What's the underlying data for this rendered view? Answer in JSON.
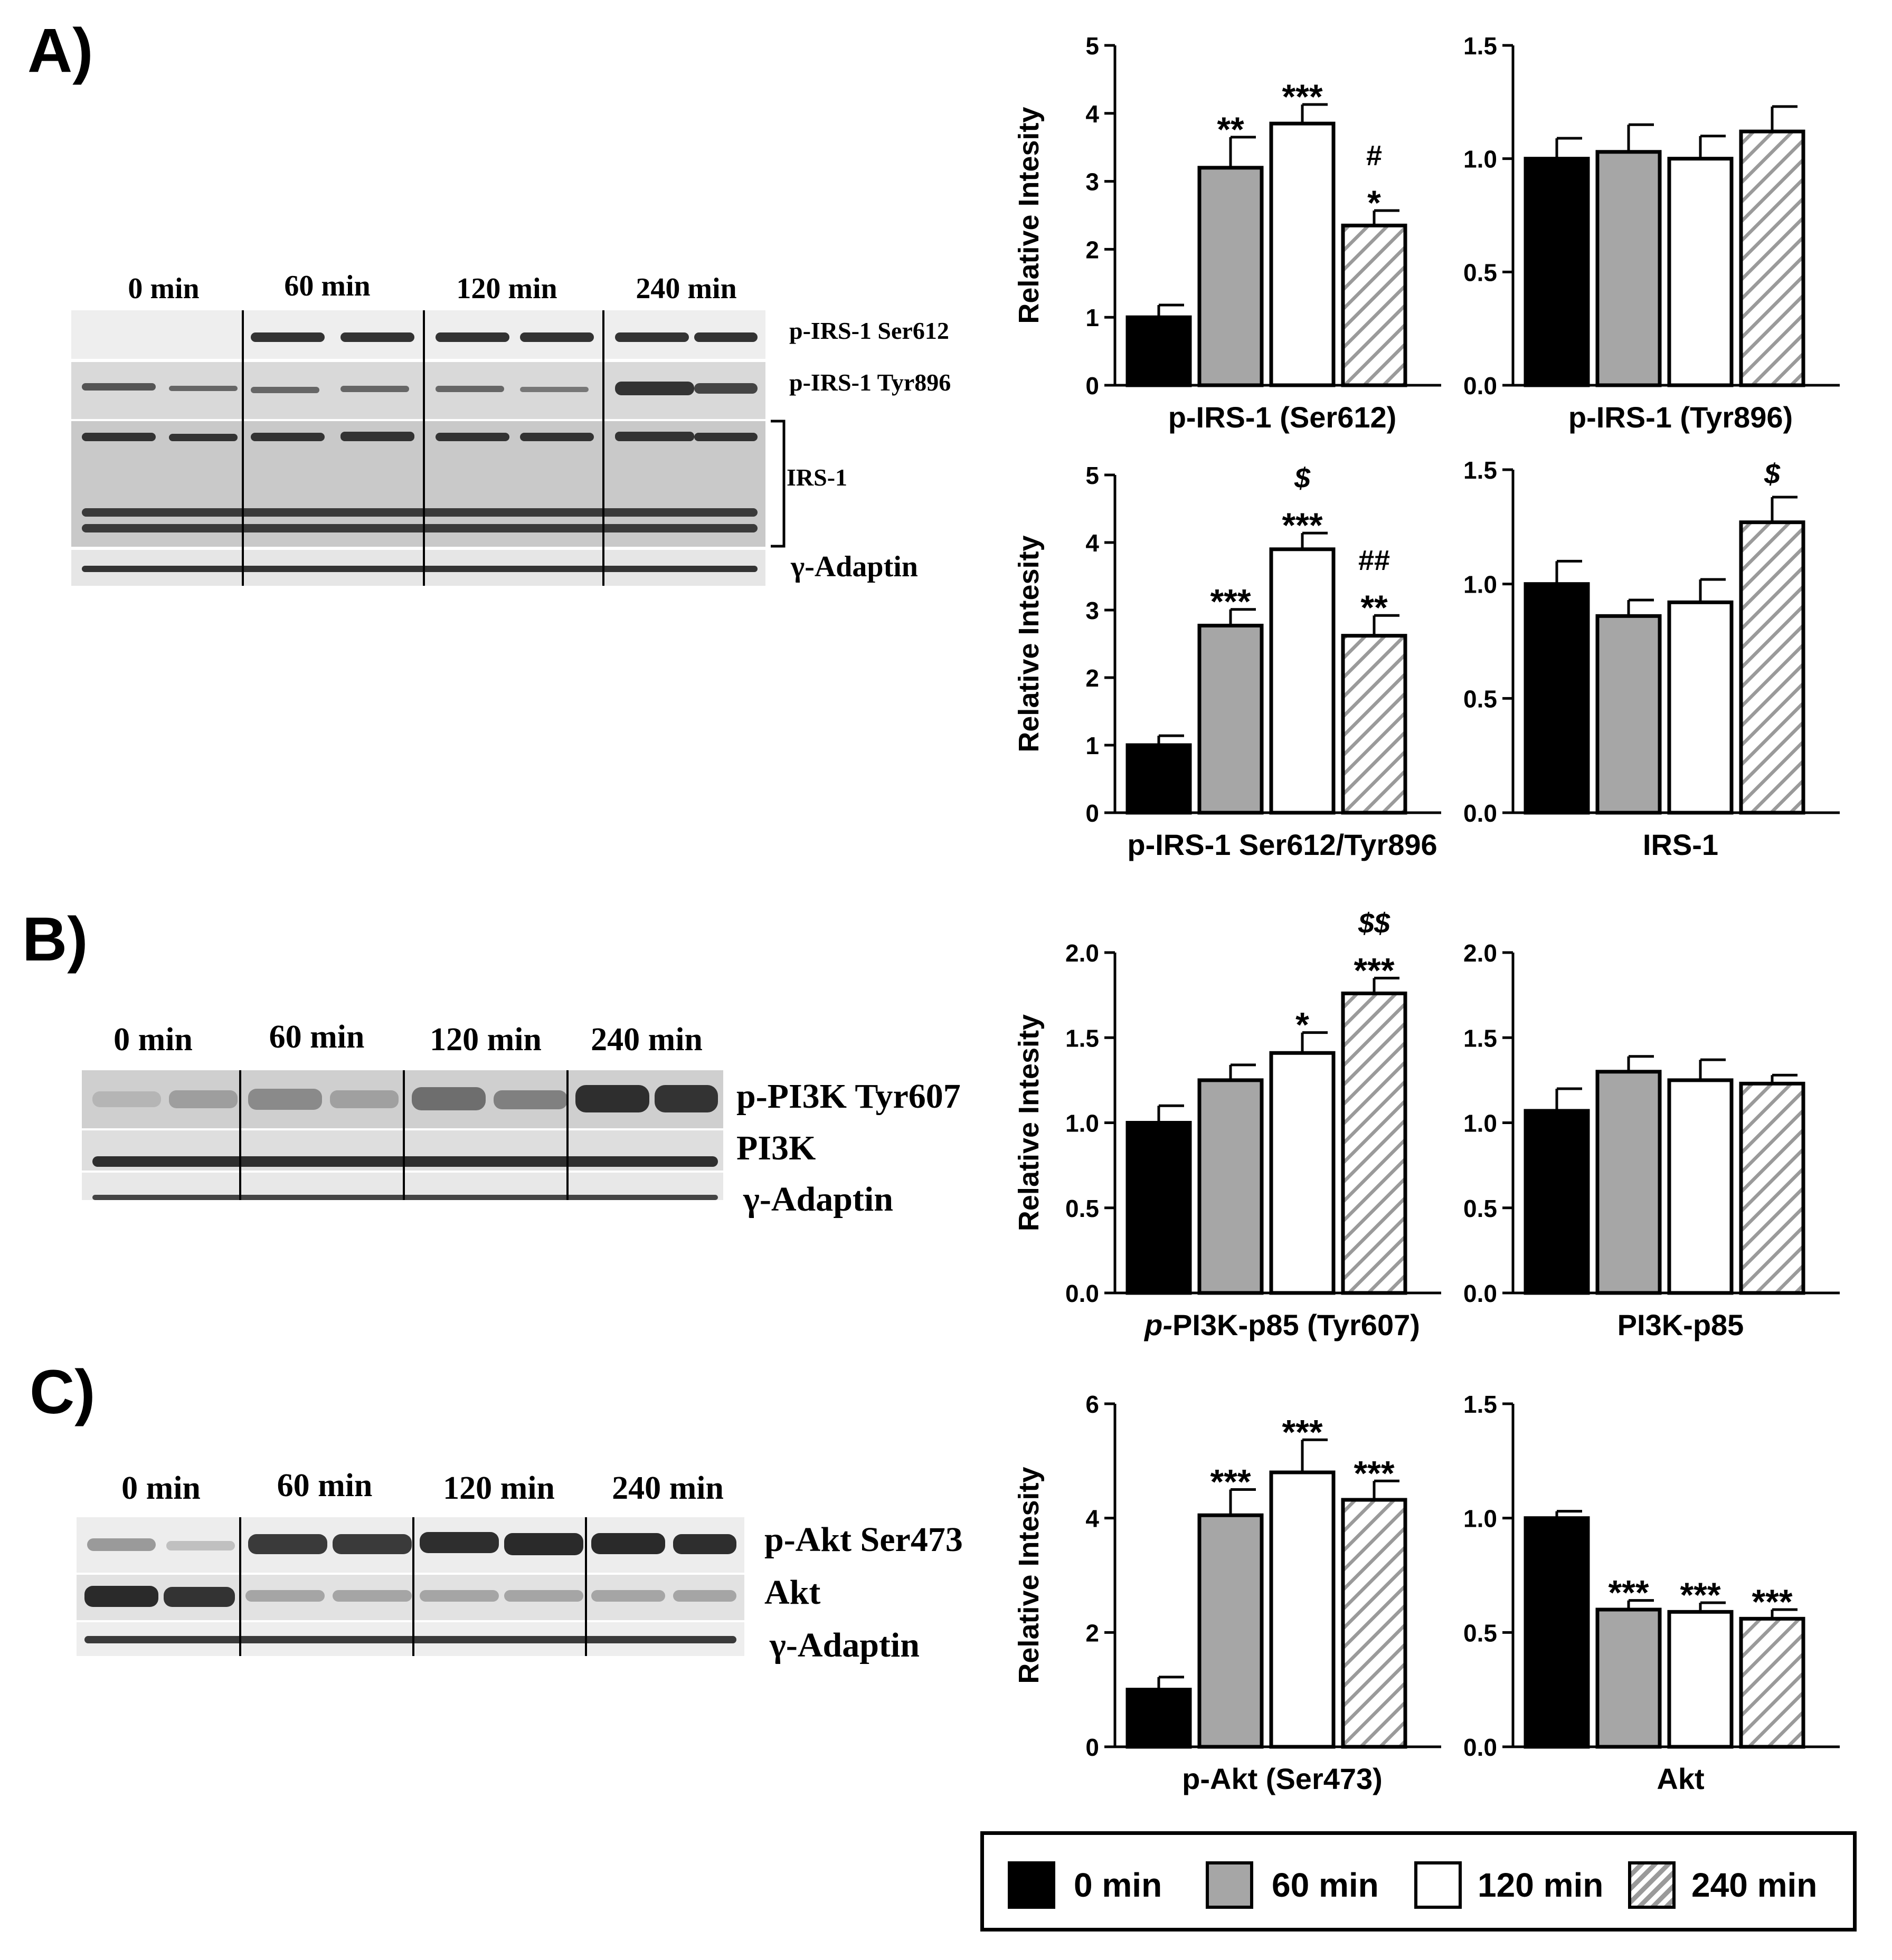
{
  "panels": {
    "A": {
      "label": "A)",
      "timepoints": [
        "0 min",
        "60 min",
        "120 min",
        "240 min"
      ],
      "bands": [
        "p-IRS-1 Ser612",
        "p-IRS-1 Tyr896",
        "IRS-1",
        "γ-Adaptin"
      ]
    },
    "B": {
      "label": "B)",
      "timepoints": [
        "0 min",
        "60 min",
        "120 min",
        "240 min"
      ],
      "bands": [
        "p-PI3K Tyr607",
        "PI3K",
        "γ-Adaptin"
      ]
    },
    "C": {
      "label": "C)",
      "timepoints": [
        "0 min",
        "60 min",
        "120 min",
        "240 min"
      ],
      "bands": [
        "p-Akt Ser473",
        "Akt",
        "γ-Adaptin"
      ]
    }
  },
  "colors": {
    "t0": "#000000",
    "t60": "#a6a6a6",
    "t120": "#ffffff",
    "t240_hatch_bg": "#ffffff",
    "t240_hatch_line": "#9a9a9a"
  },
  "legend": {
    "items": [
      {
        "label": "0 min",
        "style": "black"
      },
      {
        "label": "60 min",
        "style": "gray"
      },
      {
        "label": "120 min",
        "style": "white"
      },
      {
        "label": "240 min",
        "style": "hatched"
      }
    ]
  },
  "chart_data": [
    {
      "type": "bar",
      "xlabel": "p-IRS-1 (Ser612)",
      "xlabel_italic_prefix": "",
      "ylabel": "Relative Intesity",
      "ylim": [
        0,
        5
      ],
      "ticks": [
        "0",
        "1",
        "2",
        "3",
        "4",
        "5"
      ],
      "categories": [
        "0 min",
        "60 min",
        "120 min",
        "240 min"
      ],
      "values": [
        1.0,
        3.2,
        3.85,
        2.35
      ],
      "errors": [
        0.18,
        0.45,
        0.28,
        0.22
      ],
      "annotations": [
        [],
        [
          "**"
        ],
        [
          "***"
        ],
        [
          "#",
          "*"
        ]
      ]
    },
    {
      "type": "bar",
      "xlabel": "p-IRS-1 (Tyr896)",
      "xlabel_italic_prefix": "",
      "ylabel": "",
      "ylim": [
        0,
        1.5
      ],
      "ticks": [
        "0.0",
        "0.5",
        "1.0",
        "1.5"
      ],
      "categories": [
        "0 min",
        "60 min",
        "120 min",
        "240 min"
      ],
      "values": [
        1.0,
        1.03,
        1.0,
        1.12
      ],
      "errors": [
        0.09,
        0.12,
        0.1,
        0.11
      ],
      "annotations": [
        [],
        [],
        [],
        []
      ]
    },
    {
      "type": "bar",
      "xlabel": "p-IRS-1 Ser612/Tyr896",
      "xlabel_italic_prefix": "",
      "ylabel": "Relative Intesity",
      "ylim": [
        0,
        5
      ],
      "ticks": [
        "0",
        "1",
        "2",
        "3",
        "4",
        "5"
      ],
      "categories": [
        "0 min",
        "60 min",
        "120 min",
        "240 min"
      ],
      "values": [
        1.0,
        2.77,
        3.9,
        2.62
      ],
      "errors": [
        0.14,
        0.24,
        0.24,
        0.3
      ],
      "annotations": [
        [],
        [
          "***"
        ],
        [
          "$",
          "***"
        ],
        [
          "##",
          "**"
        ]
      ]
    },
    {
      "type": "bar",
      "xlabel": "IRS-1",
      "xlabel_italic_prefix": "",
      "ylabel": "",
      "ylim": [
        0,
        1.5
      ],
      "ticks": [
        "0.0",
        "0.5",
        "1.0",
        "1.5"
      ],
      "categories": [
        "0 min",
        "60 min",
        "120 min",
        "240 min"
      ],
      "values": [
        1.0,
        0.86,
        0.92,
        1.27
      ],
      "errors": [
        0.1,
        0.07,
        0.1,
        0.11
      ],
      "annotations": [
        [],
        [],
        [],
        [
          "$"
        ]
      ]
    },
    {
      "type": "bar",
      "xlabel": "PI3K-p85 (Tyr607)",
      "xlabel_italic_prefix": "p-",
      "ylabel": "Relative Intesity",
      "ylim": [
        0,
        2.0
      ],
      "ticks": [
        "0.0",
        "0.5",
        "1.0",
        "1.5",
        "2.0"
      ],
      "categories": [
        "0 min",
        "60 min",
        "120 min",
        "240 min"
      ],
      "values": [
        1.0,
        1.25,
        1.41,
        1.76
      ],
      "errors": [
        0.1,
        0.09,
        0.12,
        0.09
      ],
      "annotations": [
        [],
        [],
        [
          "*"
        ],
        [
          "$$",
          "***"
        ]
      ]
    },
    {
      "type": "bar",
      "xlabel": "PI3K-p85",
      "xlabel_italic_prefix": "",
      "ylabel": "",
      "ylim": [
        0,
        2.0
      ],
      "ticks": [
        "0.0",
        "0.5",
        "1.0",
        "1.5",
        "2.0"
      ],
      "categories": [
        "0 min",
        "60 min",
        "120 min",
        "240 min"
      ],
      "values": [
        1.07,
        1.3,
        1.25,
        1.23
      ],
      "errors": [
        0.13,
        0.09,
        0.12,
        0.05
      ],
      "annotations": [
        [],
        [],
        [],
        []
      ]
    },
    {
      "type": "bar",
      "xlabel": "p-Akt (Ser473)",
      "xlabel_italic_prefix": "",
      "ylabel": "Relative Intesity",
      "ylim": [
        0,
        6
      ],
      "ticks": [
        "0",
        "2",
        "4",
        "6"
      ],
      "categories": [
        "0 min",
        "60 min",
        "120 min",
        "240 min"
      ],
      "values": [
        1.0,
        4.05,
        4.8,
        4.32
      ],
      "errors": [
        0.22,
        0.45,
        0.57,
        0.33
      ],
      "annotations": [
        [],
        [
          "***"
        ],
        [
          "***"
        ],
        [
          "***"
        ]
      ]
    },
    {
      "type": "bar",
      "xlabel": "Akt",
      "xlabel_italic_prefix": "",
      "ylabel": "",
      "ylim": [
        0,
        1.5
      ],
      "ticks": [
        "0.0",
        "0.5",
        "1.0",
        "1.5"
      ],
      "categories": [
        "0 min",
        "60 min",
        "120 min",
        "240 min"
      ],
      "values": [
        1.0,
        0.6,
        0.59,
        0.56
      ],
      "errors": [
        0.03,
        0.04,
        0.04,
        0.04
      ],
      "annotations": [
        [],
        [
          "***"
        ],
        [
          "***"
        ],
        [
          "***"
        ]
      ]
    }
  ]
}
